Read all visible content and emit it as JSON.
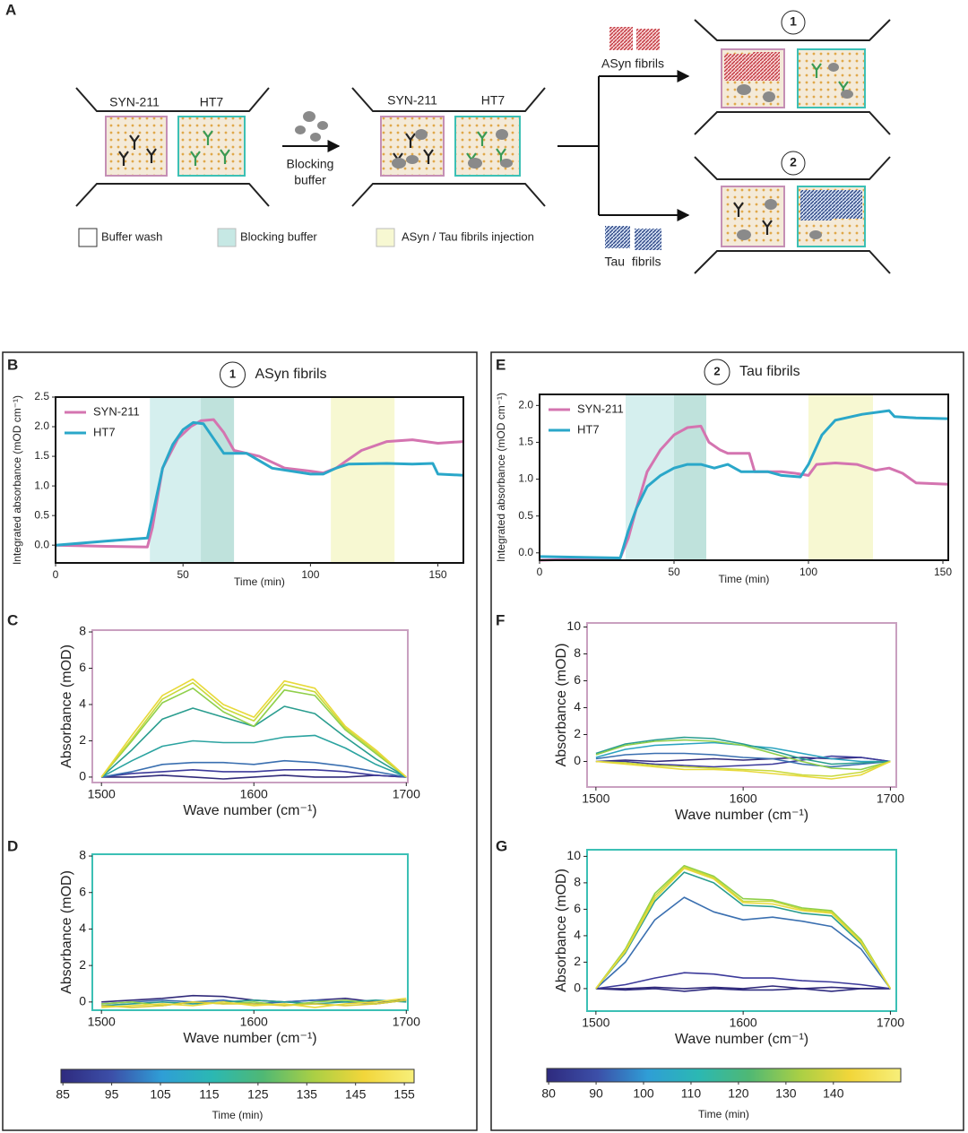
{
  "panel_a": {
    "label": "A",
    "chip_labels": [
      "SYN-211",
      "HT7"
    ],
    "blocking_step": [
      "Blocking",
      "buffer"
    ],
    "asyn": "ASyn fibrils",
    "tau": "Tau  fibrils",
    "steps": [
      "1",
      "2"
    ],
    "legend": [
      "Buffer wash",
      "Blocking buffer",
      "ASyn / Tau fibrils injection"
    ]
  },
  "chart_data": [
    {
      "type": "line",
      "panel": "B",
      "marker": "1",
      "title": "ASyn fibrils",
      "xlabel": "Time (min)",
      "ylabel": "Integrated absorbance (mOD cm⁻¹)",
      "frame_color": "#111111",
      "legend": "upper left",
      "xlim": [
        0,
        160
      ],
      "ylim": [
        -0.3,
        2.5
      ],
      "xticks": [
        0,
        50,
        100,
        150
      ],
      "yticks": [
        {
          "value": 0,
          "label": "0.0"
        },
        0.5,
        {
          "value": 1,
          "label": "1.0"
        },
        1.5,
        {
          "value": 2,
          "label": "2.0"
        },
        2.5
      ],
      "regions": [
        {
          "start": 37,
          "end": 70,
          "color": "#d5efee"
        },
        {
          "start": 57,
          "end": 70,
          "color": "#bfe2dc"
        },
        {
          "start": 108,
          "end": 133,
          "color": "#f7f8d2"
        }
      ],
      "series": [
        {
          "name": "SYN-211",
          "color": "#d474b0",
          "x": [
            0,
            20,
            36,
            38,
            42,
            48,
            53,
            57,
            62,
            66,
            70,
            80,
            90,
            100,
            105,
            110,
            115,
            120,
            130,
            140,
            150,
            160
          ],
          "values": [
            0,
            -0.02,
            -0.03,
            0.3,
            1.3,
            1.8,
            2.0,
            2.1,
            2.12,
            1.9,
            1.6,
            1.5,
            1.3,
            1.25,
            1.22,
            1.3,
            1.45,
            1.6,
            1.75,
            1.78,
            1.72,
            1.75
          ]
        },
        {
          "name": "HT7",
          "color": "#2aa7c9",
          "x": [
            0,
            20,
            36,
            38,
            42,
            46,
            50,
            54,
            58,
            62,
            66,
            75,
            85,
            100,
            105,
            110,
            115,
            130,
            140,
            148,
            150,
            160
          ],
          "values": [
            0,
            0.07,
            0.12,
            0.5,
            1.3,
            1.7,
            1.95,
            2.07,
            2.05,
            1.8,
            1.55,
            1.55,
            1.3,
            1.2,
            1.2,
            1.3,
            1.37,
            1.38,
            1.37,
            1.38,
            1.2,
            1.18
          ]
        }
      ]
    },
    {
      "type": "line",
      "panel": "C",
      "xlabel": "Wave number (cm⁻¹)",
      "ylabel": "Absorbance (mOD)",
      "frame_color": "#c9a0c0",
      "xlim": [
        1494,
        1701
      ],
      "ylim": [
        -0.3,
        8.1
      ],
      "xticks": [
        1500,
        1600,
        1700
      ],
      "yticks": [
        0,
        2,
        4,
        6,
        8
      ],
      "x": [
        1500,
        1520,
        1540,
        1560,
        1580,
        1600,
        1620,
        1640,
        1660,
        1680,
        1700
      ],
      "series": [
        {
          "color": "#312a7a",
          "values": [
            0,
            0,
            0.1,
            0,
            -0.1,
            0,
            0.1,
            0,
            0,
            0.1,
            0
          ]
        },
        {
          "color": "#3c3a9a",
          "values": [
            0,
            0.2,
            0.3,
            0.4,
            0.3,
            0.3,
            0.4,
            0.4,
            0.3,
            0.1,
            0
          ]
        },
        {
          "color": "#3a6fb0",
          "values": [
            0,
            0.3,
            0.7,
            0.8,
            0.8,
            0.7,
            0.9,
            0.8,
            0.6,
            0.3,
            0
          ]
        },
        {
          "color": "#2ba3a0",
          "values": [
            0,
            0.9,
            1.7,
            2.0,
            1.9,
            1.9,
            2.2,
            2.3,
            1.6,
            0.7,
            0
          ]
        },
        {
          "color": "#2a9d8f",
          "values": [
            0,
            1.5,
            3.2,
            3.8,
            3.3,
            2.8,
            3.9,
            3.5,
            2.2,
            1.0,
            0
          ]
        },
        {
          "color": "#8fcf4a",
          "values": [
            0,
            2.0,
            4.1,
            4.9,
            3.6,
            2.8,
            4.8,
            4.5,
            2.6,
            1.3,
            0
          ]
        },
        {
          "color": "#c9d93a",
          "values": [
            0,
            2.1,
            4.3,
            5.2,
            3.8,
            3.1,
            5.1,
            4.7,
            2.7,
            1.4,
            0
          ]
        },
        {
          "color": "#e8d93a",
          "values": [
            0,
            2.3,
            4.5,
            5.4,
            4.0,
            3.3,
            5.3,
            4.9,
            2.8,
            1.5,
            0
          ]
        }
      ]
    },
    {
      "type": "line",
      "panel": "D",
      "xlabel": "Wave number (cm⁻¹)",
      "ylabel": "Absorbance (mOD)",
      "frame_color": "#3cc0b5",
      "xlim": [
        1494,
        1701
      ],
      "ylim": [
        -0.45,
        8.1
      ],
      "xticks": [
        1500,
        1600,
        1700
      ],
      "yticks": [
        0,
        2,
        4,
        6,
        8
      ],
      "x": [
        1500,
        1520,
        1540,
        1560,
        1580,
        1600,
        1620,
        1640,
        1660,
        1680,
        1700
      ],
      "series": [
        {
          "color": "#312a7a",
          "values": [
            0,
            0.1,
            0.2,
            0.35,
            0.3,
            0.1,
            0,
            0.1,
            0.2,
            0,
            0.1
          ]
        },
        {
          "color": "#3a6fb0",
          "values": [
            -0.1,
            0,
            0.1,
            0,
            0.1,
            -0.1,
            0,
            0.1,
            0,
            -0.1,
            0.1
          ]
        },
        {
          "color": "#2a9d8f",
          "values": [
            -0.2,
            -0.1,
            0,
            -0.1,
            0,
            0.1,
            0,
            -0.1,
            0,
            0.1,
            0
          ]
        },
        {
          "color": "#8fcf4a",
          "values": [
            -0.1,
            0,
            -0.2,
            0,
            -0.1,
            0,
            -0.2,
            0,
            0.1,
            -0.1,
            0.1
          ]
        },
        {
          "color": "#d9c93a",
          "values": [
            -0.2,
            -0.3,
            -0.2,
            0,
            -0.1,
            -0.1,
            -0.2,
            -0.1,
            -0.2,
            -0.1,
            0.1
          ]
        },
        {
          "color": "#e8d93a",
          "values": [
            -0.3,
            -0.2,
            -0.1,
            -0.2,
            0,
            -0.2,
            -0.1,
            -0.3,
            -0.1,
            0,
            0.2
          ]
        }
      ]
    },
    {
      "type": "line",
      "panel": "E",
      "marker": "2",
      "title": "Tau fibrils",
      "xlabel": "Time (min)",
      "ylabel": "Integrated absorbance (mOD cm⁻¹)",
      "frame_color": "#111111",
      "legend": "upper left",
      "xlim": [
        0,
        152
      ],
      "ylim": [
        -0.1,
        2.15
      ],
      "xticks": [
        0,
        50,
        100,
        150
      ],
      "yticks": [
        {
          "value": 0,
          "label": "0.0"
        },
        0.5,
        {
          "value": 1,
          "label": "1.0"
        },
        1.5,
        {
          "value": 2,
          "label": "2.0"
        }
      ],
      "regions": [
        {
          "start": 32,
          "end": 62,
          "color": "#d5efee"
        },
        {
          "start": 50,
          "end": 62,
          "color": "#bfe2dc"
        },
        {
          "start": 100,
          "end": 124,
          "color": "#f7f8d2"
        }
      ],
      "series": [
        {
          "name": "SYN-211",
          "color": "#d474b0",
          "x": [
            0,
            30,
            33,
            36,
            40,
            45,
            50,
            55,
            60,
            63,
            67,
            70,
            78,
            80,
            90,
            95,
            100,
            103,
            110,
            118,
            125,
            130,
            135,
            140,
            152
          ],
          "values": [
            -0.1,
            -0.07,
            0.2,
            0.6,
            1.1,
            1.4,
            1.6,
            1.7,
            1.72,
            1.5,
            1.4,
            1.35,
            1.35,
            1.1,
            1.1,
            1.08,
            1.05,
            1.2,
            1.22,
            1.2,
            1.12,
            1.15,
            1.08,
            0.95,
            0.93
          ]
        },
        {
          "name": "HT7",
          "color": "#2aa7c9",
          "x": [
            0,
            30,
            33,
            36,
            40,
            45,
            50,
            55,
            60,
            65,
            70,
            75,
            85,
            90,
            97,
            100,
            105,
            110,
            120,
            130,
            132,
            140,
            152
          ],
          "values": [
            -0.05,
            -0.07,
            0.3,
            0.6,
            0.9,
            1.05,
            1.15,
            1.2,
            1.2,
            1.15,
            1.2,
            1.1,
            1.1,
            1.05,
            1.03,
            1.2,
            1.6,
            1.8,
            1.88,
            1.93,
            1.85,
            1.83,
            1.82
          ]
        }
      ]
    },
    {
      "type": "line",
      "panel": "F",
      "xlabel": "Wave number (cm⁻¹)",
      "ylabel": "Absorbance (mOD)",
      "frame_color": "#c9a0c0",
      "xlim": [
        1494,
        1704
      ],
      "ylim": [
        -1.9,
        10.3
      ],
      "xticks": [
        1500,
        1600,
        1700
      ],
      "yticks": [
        0,
        2,
        4,
        6,
        8,
        10
      ],
      "x": [
        1500,
        1520,
        1540,
        1560,
        1580,
        1600,
        1620,
        1640,
        1660,
        1680,
        1700
      ],
      "series": [
        {
          "color": "#312a7a",
          "values": [
            0,
            0.1,
            0,
            0.1,
            0.2,
            0.1,
            0.2,
            0.3,
            0.2,
            0.3,
            0
          ]
        },
        {
          "color": "#3c3a9a",
          "values": [
            0,
            0,
            -0.2,
            -0.3,
            -0.4,
            -0.3,
            -0.2,
            0.1,
            0.4,
            0.3,
            0
          ]
        },
        {
          "color": "#3a6fb0",
          "values": [
            0.2,
            0.5,
            0.6,
            0.6,
            0.5,
            0.3,
            0.2,
            -0.2,
            -0.4,
            -0.2,
            0
          ]
        },
        {
          "color": "#2ba3c0",
          "values": [
            0.3,
            0.9,
            1.2,
            1.3,
            1.4,
            1.2,
            1.0,
            0.6,
            0.2,
            0,
            0
          ]
        },
        {
          "color": "#2a9d8f",
          "values": [
            0.6,
            1.3,
            1.6,
            1.8,
            1.7,
            1.3,
            0.8,
            0.2,
            -0.2,
            -0.1,
            0
          ]
        },
        {
          "color": "#8fcf4a",
          "values": [
            0.5,
            1.2,
            1.5,
            1.6,
            1.5,
            1.2,
            0.6,
            0,
            -0.5,
            -0.6,
            0
          ]
        },
        {
          "color": "#c9d93a",
          "values": [
            0,
            -0.1,
            -0.3,
            -0.4,
            -0.5,
            -0.6,
            -0.7,
            -1.0,
            -1.1,
            -0.8,
            0
          ]
        },
        {
          "color": "#e8d93a",
          "values": [
            0,
            -0.2,
            -0.4,
            -0.6,
            -0.6,
            -0.7,
            -0.9,
            -1.1,
            -1.3,
            -1.0,
            0
          ]
        }
      ]
    },
    {
      "type": "line",
      "panel": "G",
      "xlabel": "Wave number (cm⁻¹)",
      "ylabel": "Absorbance (mOD)",
      "frame_color": "#3cc0b5",
      "xlim": [
        1494,
        1704
      ],
      "ylim": [
        -1.7,
        10.5
      ],
      "xticks": [
        1500,
        1600,
        1700
      ],
      "yticks": [
        0,
        2,
        4,
        6,
        8,
        10
      ],
      "x": [
        1500,
        1520,
        1540,
        1560,
        1580,
        1600,
        1620,
        1640,
        1660,
        1680,
        1700
      ],
      "series": [
        {
          "color": "#2f2c80",
          "values": [
            0,
            -0.1,
            0,
            -0.2,
            0,
            -0.1,
            -0.1,
            0,
            -0.2,
            0,
            0
          ]
        },
        {
          "color": "#312a7a",
          "values": [
            0,
            0,
            0.1,
            0,
            0.1,
            0,
            0.2,
            0,
            0.1,
            0,
            0
          ]
        },
        {
          "color": "#3c3a9a",
          "values": [
            0,
            0.3,
            0.8,
            1.2,
            1.1,
            0.8,
            0.8,
            0.6,
            0.5,
            0.3,
            0
          ]
        },
        {
          "color": "#3a6fb0",
          "values": [
            0,
            2.0,
            5.2,
            6.9,
            5.8,
            5.2,
            5.4,
            5.1,
            4.7,
            3.0,
            0
          ]
        },
        {
          "color": "#2a9d8f",
          "values": [
            0,
            2.7,
            6.6,
            8.8,
            8.0,
            6.3,
            6.2,
            5.7,
            5.5,
            3.4,
            0
          ]
        },
        {
          "color": "#8fcf4a",
          "values": [
            0,
            3.0,
            7.2,
            9.3,
            8.5,
            6.8,
            6.7,
            6.1,
            5.9,
            3.7,
            0
          ]
        },
        {
          "color": "#c9d93a",
          "values": [
            0,
            2.9,
            7.0,
            9.2,
            8.4,
            6.6,
            6.6,
            6.0,
            5.8,
            3.6,
            0
          ]
        },
        {
          "color": "#e8d93a",
          "values": [
            0,
            2.8,
            6.8,
            9.1,
            8.3,
            6.5,
            6.4,
            5.9,
            5.7,
            3.5,
            0
          ]
        }
      ]
    },
    {
      "type": "colorbar",
      "label": "Time (min)",
      "xlim": [
        84.6,
        157
      ],
      "xticks": [
        85,
        95,
        105,
        115,
        125,
        135,
        145,
        155
      ],
      "colors": [
        "#2e2a7e",
        "#3c4fa8",
        "#2f9ed6",
        "#2bb8b3",
        "#4fb874",
        "#a9cf45",
        "#f2d63a",
        "#f7ef7a"
      ]
    },
    {
      "type": "colorbar",
      "label": "Time (min)",
      "xlim": [
        79.6,
        154.2
      ],
      "xticks": [
        80,
        90,
        100,
        110,
        120,
        130,
        140
      ],
      "colors": [
        "#2e2a7e",
        "#3c4fa8",
        "#2f9ed6",
        "#2bb8b3",
        "#4fb874",
        "#a9cf45",
        "#f2d63a",
        "#f7ef7a"
      ]
    }
  ]
}
